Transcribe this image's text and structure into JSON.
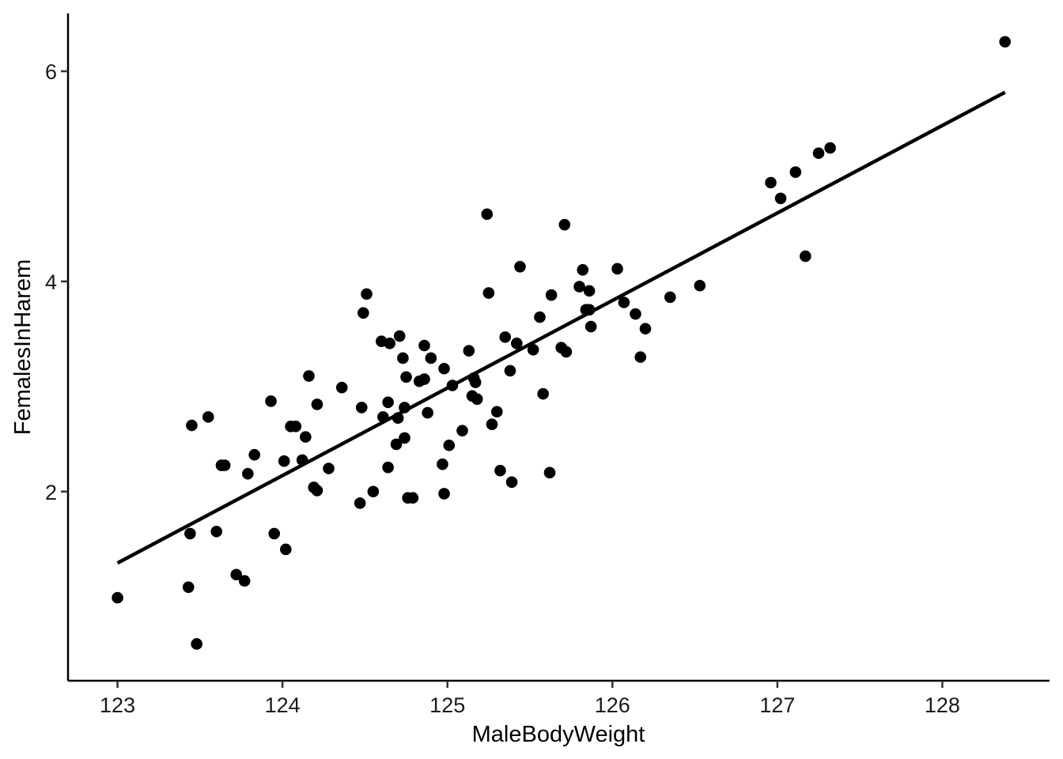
{
  "chart_data": {
    "type": "scatter",
    "xlabel": "MaleBodyWeight",
    "ylabel": "FemalesInHarem",
    "xlim": [
      122.7,
      128.65
    ],
    "ylim": [
      0.2,
      6.55
    ],
    "x_ticks": [
      123,
      124,
      125,
      126,
      127,
      128
    ],
    "y_ticks": [
      2,
      4,
      6
    ],
    "x_tick_labels": [
      "123",
      "124",
      "125",
      "126",
      "127",
      "128"
    ],
    "y_tick_labels": [
      "2",
      "4",
      "6"
    ],
    "grid": false,
    "legend": "none",
    "point_color": "#000000",
    "trend_line": {
      "x": [
        123.0,
        128.38
      ],
      "y": [
        1.32,
        5.8
      ]
    },
    "points": [
      [
        123.0,
        0.99
      ],
      [
        123.43,
        1.09
      ],
      [
        123.44,
        1.6
      ],
      [
        123.45,
        2.63
      ],
      [
        123.48,
        0.55
      ],
      [
        123.55,
        2.71
      ],
      [
        123.6,
        1.62
      ],
      [
        123.63,
        2.25
      ],
      [
        123.65,
        2.25
      ],
      [
        123.72,
        1.21
      ],
      [
        123.77,
        1.15
      ],
      [
        123.79,
        2.17
      ],
      [
        123.83,
        2.35
      ],
      [
        123.93,
        2.86
      ],
      [
        123.95,
        1.6
      ],
      [
        124.01,
        2.29
      ],
      [
        124.02,
        1.45
      ],
      [
        124.05,
        2.62
      ],
      [
        124.08,
        2.62
      ],
      [
        124.12,
        2.3
      ],
      [
        124.14,
        2.52
      ],
      [
        124.16,
        3.1
      ],
      [
        124.19,
        2.04
      ],
      [
        124.21,
        2.01
      ],
      [
        124.21,
        2.83
      ],
      [
        124.28,
        2.22
      ],
      [
        124.36,
        2.99
      ],
      [
        124.47,
        1.89
      ],
      [
        124.48,
        2.8
      ],
      [
        124.49,
        3.7
      ],
      [
        124.51,
        3.88
      ],
      [
        124.55,
        2.0
      ],
      [
        124.6,
        3.43
      ],
      [
        124.61,
        2.71
      ],
      [
        124.64,
        2.85
      ],
      [
        124.64,
        2.23
      ],
      [
        124.65,
        3.41
      ],
      [
        124.69,
        2.45
      ],
      [
        124.7,
        2.7
      ],
      [
        124.71,
        3.48
      ],
      [
        124.73,
        3.27
      ],
      [
        124.74,
        2.51
      ],
      [
        124.74,
        2.8
      ],
      [
        124.75,
        3.09
      ],
      [
        124.76,
        1.94
      ],
      [
        124.79,
        1.94
      ],
      [
        124.83,
        3.05
      ],
      [
        124.86,
        3.39
      ],
      [
        124.86,
        3.07
      ],
      [
        124.88,
        2.75
      ],
      [
        124.9,
        3.27
      ],
      [
        124.97,
        2.26
      ],
      [
        124.98,
        3.17
      ],
      [
        124.98,
        1.98
      ],
      [
        125.01,
        2.44
      ],
      [
        125.03,
        3.01
      ],
      [
        125.09,
        2.58
      ],
      [
        125.13,
        3.34
      ],
      [
        125.15,
        2.91
      ],
      [
        125.16,
        3.08
      ],
      [
        125.17,
        3.04
      ],
      [
        125.18,
        2.88
      ],
      [
        125.24,
        4.64
      ],
      [
        125.25,
        3.89
      ],
      [
        125.27,
        2.64
      ],
      [
        125.3,
        2.76
      ],
      [
        125.32,
        2.2
      ],
      [
        125.35,
        3.47
      ],
      [
        125.38,
        3.15
      ],
      [
        125.39,
        2.09
      ],
      [
        125.42,
        3.41
      ],
      [
        125.44,
        4.14
      ],
      [
        125.52,
        3.35
      ],
      [
        125.56,
        3.66
      ],
      [
        125.58,
        2.93
      ],
      [
        125.62,
        2.18
      ],
      [
        125.63,
        3.87
      ],
      [
        125.69,
        3.37
      ],
      [
        125.71,
        4.54
      ],
      [
        125.72,
        3.33
      ],
      [
        125.8,
        3.95
      ],
      [
        125.82,
        4.11
      ],
      [
        125.84,
        3.73
      ],
      [
        125.86,
        3.91
      ],
      [
        125.86,
        3.73
      ],
      [
        125.87,
        3.57
      ],
      [
        126.03,
        4.12
      ],
      [
        126.07,
        3.8
      ],
      [
        126.14,
        3.69
      ],
      [
        126.17,
        3.28
      ],
      [
        126.2,
        3.55
      ],
      [
        126.35,
        3.85
      ],
      [
        126.53,
        3.96
      ],
      [
        126.96,
        4.94
      ],
      [
        127.02,
        4.79
      ],
      [
        127.11,
        5.04
      ],
      [
        127.17,
        4.24
      ],
      [
        127.25,
        5.22
      ],
      [
        127.32,
        5.27
      ],
      [
        128.38,
        6.28
      ]
    ]
  }
}
